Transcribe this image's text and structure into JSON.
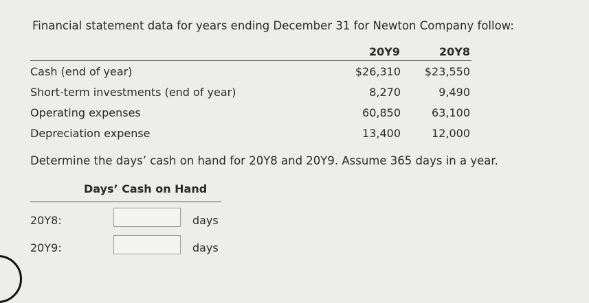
{
  "intro": "Financial statement data for years ending December 31 for Newton Company follow:",
  "table": {
    "headers": [
      "20Y9",
      "20Y8"
    ],
    "rows": [
      {
        "label": "Cash (end of year)",
        "y9": "$26,310",
        "y8": "$23,550"
      },
      {
        "label": "Short-term investments (end of year)",
        "y9": "8,270",
        "y8": "9,490"
      },
      {
        "label": "Operating expenses",
        "y9": "60,850",
        "y8": "63,100"
      },
      {
        "label": "Depreciation expense",
        "y9": "13,400",
        "y8": "12,000"
      }
    ]
  },
  "question": "Determine the days’ cash on hand for 20Y8 and 20Y9. Assume 365 days in a year.",
  "answer": {
    "title": "Days’ Cash on Hand",
    "rows": [
      {
        "label": "20Y8:",
        "value": "",
        "unit": "days"
      },
      {
        "label": "20Y9:",
        "value": "",
        "unit": "days"
      }
    ]
  }
}
